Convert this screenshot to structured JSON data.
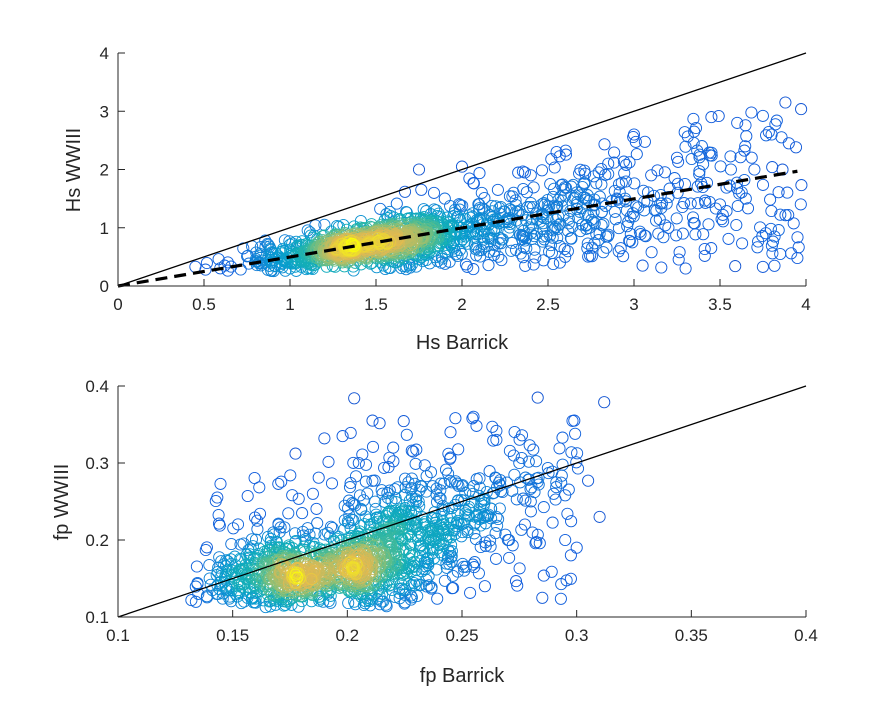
{
  "colors": {
    "background": "#ffffff",
    "axis": "#262626",
    "reference_line": "#000000",
    "fit_line": "#000000",
    "density_low": "#3d4fd8",
    "density_mid": "#19b5c7",
    "density_high": "#f7e21c"
  },
  "chart_data": [
    {
      "type": "scatter",
      "id": "hs",
      "xlabel": "Hs Barrick",
      "ylabel": "Hs WWIII",
      "xlim": [
        0,
        4
      ],
      "ylim": [
        0,
        4
      ],
      "xticks": [
        0,
        0.5,
        1,
        1.5,
        2,
        2.5,
        3,
        3.5,
        4
      ],
      "xtick_labels": [
        "0",
        "0.5",
        "1",
        "1.5",
        "2",
        "2.5",
        "3",
        "3.5",
        "4"
      ],
      "yticks": [
        0,
        1,
        2,
        3,
        4
      ],
      "ytick_labels": [
        "0",
        "1",
        "2",
        "3",
        "4"
      ],
      "marker": "circle-open",
      "color_by": "point density",
      "approx_point_count": 1500,
      "core_center": [
        1.4,
        0.65
      ],
      "reference_line": {
        "style": "solid",
        "from": [
          0,
          0
        ],
        "to": [
          4,
          4
        ]
      },
      "fit_line": {
        "style": "dashed",
        "from": [
          0,
          0
        ],
        "to": [
          3.95,
          1.97
        ]
      },
      "sample_points": [
        [
          0.45,
          0.33
        ],
        [
          0.62,
          0.35
        ],
        [
          0.8,
          0.42
        ],
        [
          1.0,
          0.55
        ],
        [
          1.1,
          0.62
        ],
        [
          1.2,
          0.58
        ],
        [
          1.3,
          0.68
        ],
        [
          1.35,
          0.6
        ],
        [
          1.4,
          0.7
        ],
        [
          1.45,
          0.55
        ],
        [
          1.5,
          0.72
        ],
        [
          1.55,
          0.65
        ],
        [
          1.6,
          0.8
        ],
        [
          1.65,
          0.95
        ],
        [
          1.7,
          1.05
        ],
        [
          1.75,
          0.9
        ],
        [
          1.8,
          1.1
        ],
        [
          1.85,
          1.3
        ],
        [
          1.9,
          1.5
        ],
        [
          1.95,
          1.2
        ],
        [
          2.0,
          1.0
        ],
        [
          2.1,
          1.4
        ],
        [
          2.2,
          1.1
        ],
        [
          2.3,
          1.6
        ],
        [
          2.35,
          0.8
        ],
        [
          2.4,
          1.9
        ],
        [
          2.5,
          1.3
        ],
        [
          2.55,
          2.3
        ],
        [
          2.6,
          0.5
        ],
        [
          2.7,
          1.7
        ],
        [
          2.8,
          0.9
        ],
        [
          2.85,
          2.1
        ],
        [
          2.9,
          1.5
        ],
        [
          3.0,
          2.6
        ],
        [
          3.05,
          0.35
        ],
        [
          3.1,
          1.9
        ],
        [
          3.2,
          1.0
        ],
        [
          3.25,
          2.2
        ],
        [
          3.3,
          0.3
        ],
        [
          3.4,
          1.7
        ],
        [
          3.45,
          2.9
        ],
        [
          3.5,
          1.4
        ],
        [
          3.6,
          2.8
        ],
        [
          3.65,
          1.5
        ],
        [
          3.7,
          2.0
        ],
        [
          3.8,
          2.6
        ],
        [
          3.85,
          0.55
        ],
        [
          3.88,
          3.15
        ],
        [
          3.9,
          2.45
        ],
        [
          3.95,
          0.48
        ],
        [
          3.97,
          1.4
        ],
        [
          1.2,
          1.05
        ],
        [
          1.75,
          2.0
        ],
        [
          2.0,
          2.05
        ],
        [
          1.0,
          0.3
        ]
      ]
    },
    {
      "type": "scatter",
      "id": "fp",
      "xlabel": "fp Barrick",
      "ylabel": "fp WWIII",
      "xlim": [
        0.1,
        0.4
      ],
      "ylim": [
        0.1,
        0.4
      ],
      "xticks": [
        0.1,
        0.15,
        0.2,
        0.25,
        0.3,
        0.35,
        0.4
      ],
      "xtick_labels": [
        "0.1",
        "0.15",
        "0.2",
        "0.25",
        "0.3",
        "0.35",
        "0.4"
      ],
      "yticks": [
        0.1,
        0.2,
        0.3,
        0.4
      ],
      "ytick_labels": [
        "0.1",
        "0.2",
        "0.3",
        "0.4"
      ],
      "marker": "circle-open",
      "color_by": "point density",
      "approx_point_count": 1500,
      "core_center": [
        0.18,
        0.16
      ],
      "reference_line": {
        "style": "solid",
        "from": [
          0.1,
          0.1
        ],
        "to": [
          0.4,
          0.4
        ]
      },
      "sample_points": [
        [
          0.132,
          0.122
        ],
        [
          0.135,
          0.13
        ],
        [
          0.14,
          0.15
        ],
        [
          0.15,
          0.16
        ],
        [
          0.155,
          0.12
        ],
        [
          0.16,
          0.17
        ],
        [
          0.165,
          0.14
        ],
        [
          0.17,
          0.22
        ],
        [
          0.175,
          0.15
        ],
        [
          0.18,
          0.16
        ],
        [
          0.185,
          0.26
        ],
        [
          0.19,
          0.15
        ],
        [
          0.19,
          0.332
        ],
        [
          0.2,
          0.18
        ],
        [
          0.203,
          0.384
        ],
        [
          0.205,
          0.3
        ],
        [
          0.21,
          0.22
        ],
        [
          0.215,
          0.12
        ],
        [
          0.22,
          0.32
        ],
        [
          0.225,
          0.16
        ],
        [
          0.23,
          0.25
        ],
        [
          0.24,
          0.2
        ],
        [
          0.245,
          0.34
        ],
        [
          0.25,
          0.27
        ],
        [
          0.255,
          0.36
        ],
        [
          0.26,
          0.14
        ],
        [
          0.265,
          0.33
        ],
        [
          0.27,
          0.2
        ],
        [
          0.275,
          0.3
        ],
        [
          0.28,
          0.25
        ],
        [
          0.283,
          0.385
        ],
        [
          0.285,
          0.125
        ],
        [
          0.29,
          0.26
        ],
        [
          0.295,
          0.2
        ],
        [
          0.3,
          0.19
        ],
        [
          0.305,
          0.277
        ],
        [
          0.31,
          0.23
        ],
        [
          0.312,
          0.379
        ],
        [
          0.232,
          0.27
        ],
        [
          0.245,
          0.23
        ],
        [
          0.265,
          0.23
        ]
      ]
    }
  ]
}
